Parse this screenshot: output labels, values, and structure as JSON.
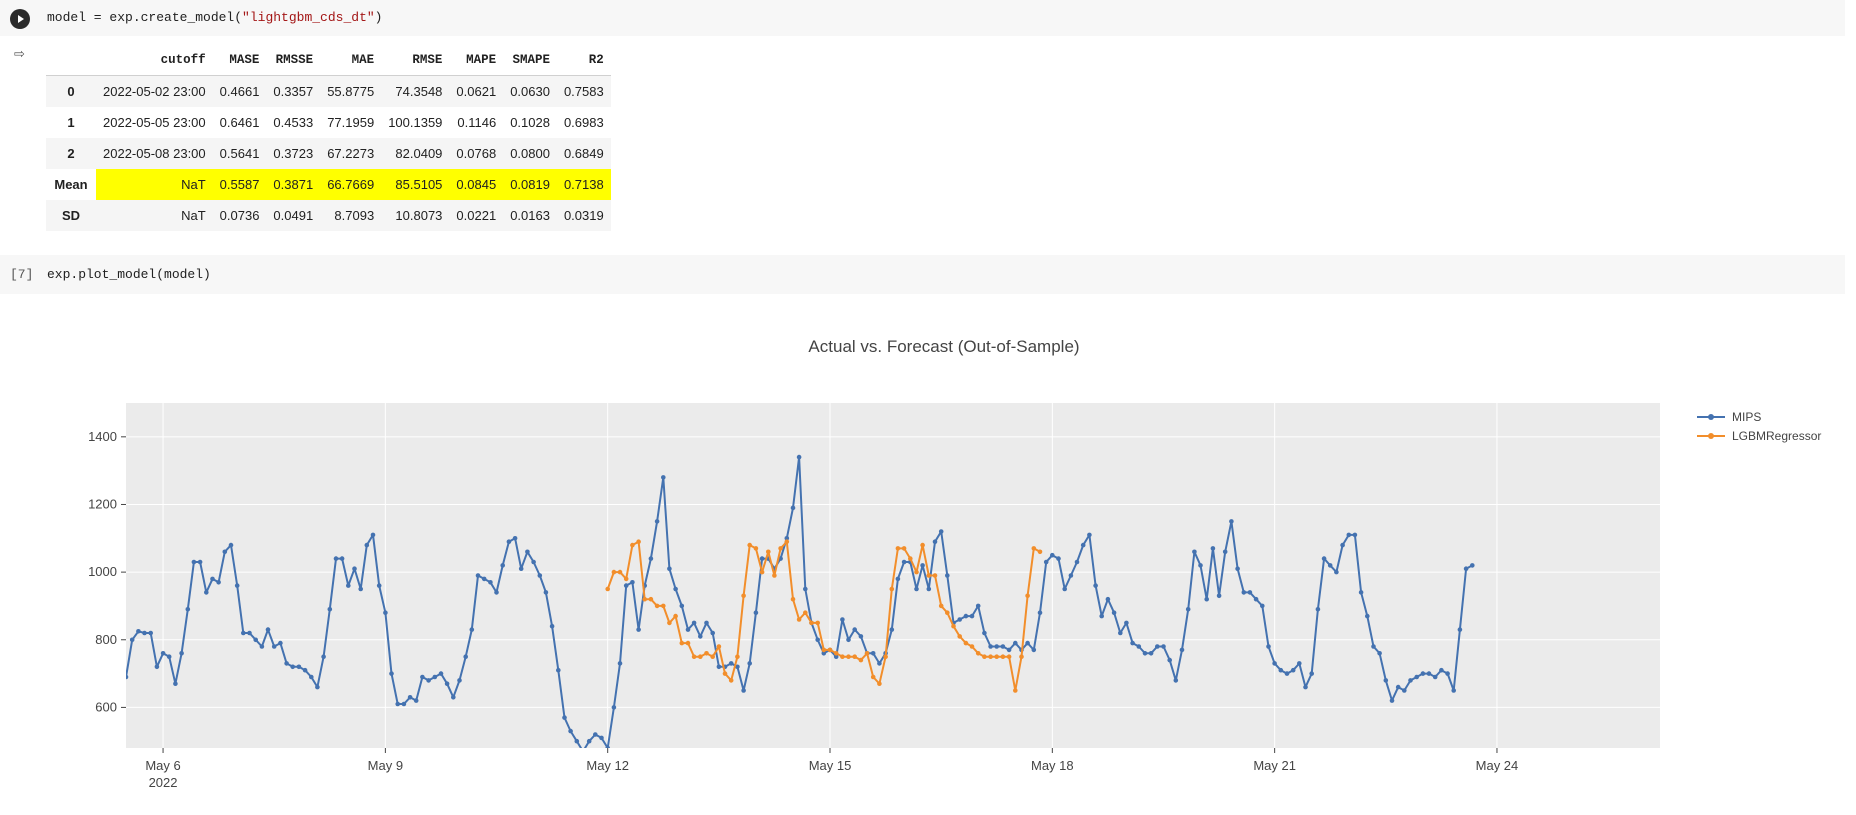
{
  "cells": [
    {
      "code_prefix": "model = exp.create_model(",
      "code_string": "\"lightgbm_cds_dt\"",
      "code_suffix": ")"
    },
    {
      "exec_count": "[7]",
      "code": "exp.plot_model(model)"
    }
  ],
  "table": {
    "columns": [
      "",
      "cutoff",
      "MASE",
      "RMSSE",
      "MAE",
      "RMSE",
      "MAPE",
      "SMAPE",
      "R2"
    ],
    "rows": [
      [
        "0",
        "2022-05-02 23:00",
        "0.4661",
        "0.3357",
        "55.8775",
        "74.3548",
        "0.0621",
        "0.0630",
        "0.7583"
      ],
      [
        "1",
        "2022-05-05 23:00",
        "0.6461",
        "0.4533",
        "77.1959",
        "100.1359",
        "0.1146",
        "0.1028",
        "0.6983"
      ],
      [
        "2",
        "2022-05-08 23:00",
        "0.5641",
        "0.3723",
        "67.2273",
        "82.0409",
        "0.0768",
        "0.0800",
        "0.6849"
      ],
      [
        "Mean",
        "NaT",
        "0.5587",
        "0.3871",
        "66.7669",
        "85.5105",
        "0.0845",
        "0.0819",
        "0.7138"
      ],
      [
        "SD",
        "NaT",
        "0.0736",
        "0.0491",
        "8.7093",
        "10.8073",
        "0.0221",
        "0.0163",
        "0.0319"
      ]
    ],
    "highlight_color": "#ffff00"
  },
  "chart_data": {
    "type": "line",
    "title": "Actual vs. Forecast (Out-of-Sample)",
    "x_axis": {
      "ticks": [
        "May 6",
        "May 9",
        "May 12",
        "May 15",
        "May 18",
        "May 21",
        "May 24"
      ],
      "tick_days": [
        6,
        9,
        12,
        15,
        18,
        21,
        24
      ],
      "sub_label": "2022",
      "range_days": [
        5.5,
        26.2
      ]
    },
    "y_axis": {
      "ticks": [
        "1400",
        "1200",
        "1000",
        "800",
        "600"
      ],
      "tick_values": [
        1400,
        1200,
        1000,
        800,
        600
      ],
      "range": [
        480,
        1500
      ]
    },
    "grid": true,
    "legend_position": "top-right",
    "series": [
      {
        "name": "MIPS",
        "color": "#4472b0",
        "x_start_day": 5.5,
        "x_step_hours": 2,
        "values": [
          690,
          800,
          825,
          820,
          820,
          720,
          760,
          750,
          670,
          760,
          890,
          1030,
          1030,
          940,
          980,
          970,
          1060,
          1080,
          960,
          820,
          820,
          800,
          780,
          830,
          780,
          790,
          730,
          720,
          720,
          710,
          690,
          660,
          750,
          890,
          1040,
          1040,
          960,
          1010,
          950,
          1080,
          1110,
          960,
          880,
          700,
          610,
          610,
          630,
          620,
          690,
          680,
          690,
          700,
          670,
          630,
          680,
          750,
          830,
          990,
          980,
          970,
          940,
          1020,
          1090,
          1100,
          1010,
          1060,
          1030,
          990,
          940,
          840,
          710,
          570,
          530,
          500,
          470,
          500,
          520,
          510,
          480,
          600,
          730,
          960,
          970,
          830,
          960,
          1040,
          1150,
          1280,
          1010,
          950,
          900,
          830,
          850,
          810,
          850,
          820,
          720,
          720,
          730,
          720,
          650,
          730,
          880,
          1040,
          1040,
          1010,
          1040,
          1100,
          1190,
          1340,
          950,
          850,
          800,
          760,
          770,
          750,
          860,
          800,
          830,
          810,
          760,
          760,
          730,
          760,
          830,
          980,
          1030,
          1030,
          950,
          1020,
          950,
          1090,
          1120,
          990,
          850,
          860,
          870,
          870,
          900,
          820,
          780,
          780,
          780,
          770,
          790,
          770,
          790,
          770,
          880,
          1030,
          1050,
          1040,
          950,
          990,
          1030,
          1080,
          1110,
          960,
          870,
          920,
          880,
          820,
          850,
          790,
          780,
          760,
          760,
          780,
          780,
          740,
          680,
          770,
          890,
          1060,
          1020,
          920,
          1070,
          930,
          1060,
          1150,
          1010,
          940,
          940,
          920,
          900,
          780,
          730,
          710,
          700,
          710,
          730,
          660,
          700,
          890,
          1040,
          1020,
          1000,
          1080,
          1110,
          1110,
          940,
          870,
          780,
          760,
          680,
          620,
          660,
          650,
          680,
          690,
          700,
          700,
          690,
          710,
          700,
          650,
          830,
          1010,
          1020
        ]
      },
      {
        "name": "LGBMRegressor",
        "color": "#f28e2b",
        "x_start_day": 12.0,
        "x_step_hours": 2,
        "values": [
          950,
          1000,
          1000,
          980,
          1080,
          1090,
          920,
          920,
          900,
          900,
          850,
          870,
          790,
          790,
          750,
          750,
          760,
          750,
          780,
          700,
          680,
          750,
          930,
          1080,
          1070,
          1000,
          1060,
          990,
          1070,
          1090,
          920,
          860,
          880,
          850,
          850,
          770,
          770,
          760,
          750,
          750,
          750,
          740,
          760,
          690,
          670,
          750,
          950,
          1070,
          1070,
          1040,
          1000,
          1080,
          990,
          990,
          900,
          880,
          840,
          810,
          790,
          780,
          760,
          750,
          750,
          750,
          750,
          750,
          650,
          750,
          930,
          1070,
          1060
        ]
      }
    ]
  }
}
